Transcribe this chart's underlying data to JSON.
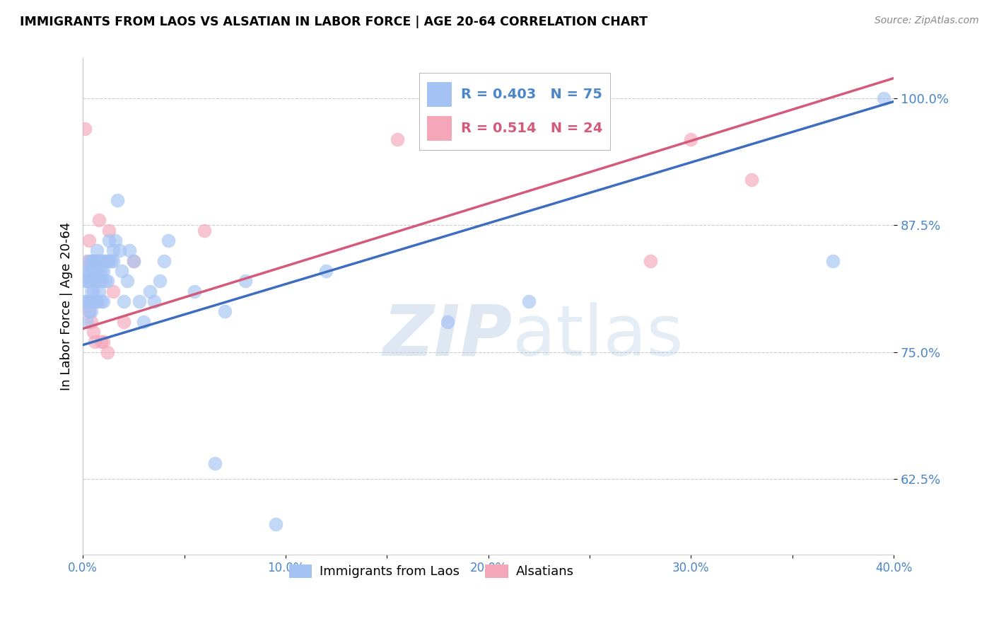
{
  "title": "IMMIGRANTS FROM LAOS VS ALSATIAN IN LABOR FORCE | AGE 20-64 CORRELATION CHART",
  "source": "Source: ZipAtlas.com",
  "ylabel": "In Labor Force | Age 20-64",
  "blue_label": "Immigrants from Laos",
  "pink_label": "Alsatians",
  "blue_R": 0.403,
  "blue_N": 75,
  "pink_R": 0.514,
  "pink_N": 24,
  "blue_color": "#a4c2f4",
  "pink_color": "#f4a7b9",
  "blue_line_color": "#3d6dbf",
  "pink_line_color": "#d45a7a",
  "axis_label_color": "#4a86c8",
  "xlim": [
    0.0,
    0.4
  ],
  "ylim": [
    0.55,
    1.04
  ],
  "yticks": [
    0.625,
    0.75,
    0.875,
    1.0
  ],
  "ytick_labels": [
    "62.5%",
    "75.0%",
    "87.5%",
    "100.0%"
  ],
  "xticks": [
    0.0,
    0.05,
    0.1,
    0.15,
    0.2,
    0.25,
    0.3,
    0.35,
    0.4
  ],
  "xtick_labels": [
    "0.0%",
    "",
    "10.0%",
    "",
    "20.0%",
    "",
    "30.0%",
    "",
    "40.0%"
  ],
  "blue_trendline": [
    0.757,
    0.997
  ],
  "pink_trendline": [
    0.773,
    1.02
  ],
  "blue_x": [
    0.001,
    0.001,
    0.002,
    0.002,
    0.002,
    0.002,
    0.003,
    0.003,
    0.003,
    0.003,
    0.003,
    0.004,
    0.004,
    0.004,
    0.004,
    0.004,
    0.004,
    0.005,
    0.005,
    0.005,
    0.005,
    0.005,
    0.006,
    0.006,
    0.006,
    0.007,
    0.007,
    0.007,
    0.007,
    0.007,
    0.008,
    0.008,
    0.008,
    0.008,
    0.009,
    0.009,
    0.009,
    0.009,
    0.01,
    0.01,
    0.01,
    0.011,
    0.011,
    0.012,
    0.012,
    0.013,
    0.013,
    0.014,
    0.015,
    0.015,
    0.016,
    0.017,
    0.018,
    0.019,
    0.02,
    0.022,
    0.023,
    0.025,
    0.028,
    0.03,
    0.033,
    0.035,
    0.038,
    0.04,
    0.042,
    0.055,
    0.065,
    0.07,
    0.08,
    0.095,
    0.12,
    0.18,
    0.22,
    0.37,
    0.395
  ],
  "blue_y": [
    0.82,
    0.8,
    0.83,
    0.82,
    0.8,
    0.78,
    0.84,
    0.83,
    0.82,
    0.8,
    0.79,
    0.84,
    0.83,
    0.82,
    0.81,
    0.8,
    0.79,
    0.84,
    0.83,
    0.82,
    0.81,
    0.8,
    0.84,
    0.83,
    0.82,
    0.85,
    0.84,
    0.83,
    0.82,
    0.8,
    0.84,
    0.83,
    0.82,
    0.81,
    0.84,
    0.83,
    0.82,
    0.8,
    0.84,
    0.83,
    0.8,
    0.84,
    0.82,
    0.84,
    0.82,
    0.84,
    0.86,
    0.84,
    0.85,
    0.84,
    0.86,
    0.9,
    0.85,
    0.83,
    0.8,
    0.82,
    0.85,
    0.84,
    0.8,
    0.78,
    0.81,
    0.8,
    0.82,
    0.84,
    0.86,
    0.81,
    0.64,
    0.79,
    0.82,
    0.58,
    0.83,
    0.78,
    0.8,
    0.84,
    1.0
  ],
  "pink_x": [
    0.001,
    0.002,
    0.003,
    0.003,
    0.004,
    0.004,
    0.005,
    0.005,
    0.006,
    0.007,
    0.007,
    0.008,
    0.009,
    0.01,
    0.012,
    0.013,
    0.015,
    0.02,
    0.025,
    0.06,
    0.155,
    0.28,
    0.3,
    0.33
  ],
  "pink_y": [
    0.97,
    0.84,
    0.79,
    0.86,
    0.82,
    0.78,
    0.84,
    0.77,
    0.76,
    0.84,
    0.8,
    0.88,
    0.76,
    0.76,
    0.75,
    0.87,
    0.81,
    0.78,
    0.84,
    0.87,
    0.96,
    0.84,
    0.96,
    0.92
  ],
  "watermark_zip": "ZIP",
  "watermark_atlas": "atlas",
  "background_color": "#ffffff",
  "grid_color": "#cccccc",
  "legend_box_color": "#f8f8ff"
}
